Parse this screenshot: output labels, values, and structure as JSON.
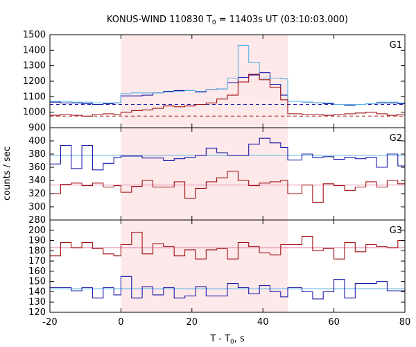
{
  "chart_data": {
    "type": "line",
    "title_prefix": "KONUS-WIND 110830 T",
    "title_sub": "0",
    "title_suffix": " = 11403s UT (03:10:03.000)",
    "xlabel_prefix": "T - T",
    "xlabel_sub": "0",
    "xlabel_suffix": ", s",
    "ylabel": "counts / sec",
    "xlim": [
      -20,
      80
    ],
    "xticks": [
      -20,
      0,
      20,
      40,
      60,
      80
    ],
    "highlight": {
      "x0": 0,
      "x1": 47,
      "color": "#fde8ea"
    },
    "panels": [
      {
        "label": "G1",
        "ylim": [
          900,
          1500
        ],
        "yticks": [
          900,
          1000,
          1100,
          1200,
          1300,
          1400,
          1500
        ],
        "x_edges": [
          -20,
          -17,
          -14,
          -11,
          -8,
          -5,
          -2,
          0,
          3,
          6,
          9,
          12,
          15,
          18,
          21,
          24,
          27,
          30,
          33,
          36,
          39,
          42,
          45,
          47,
          51,
          54,
          57,
          60,
          63,
          66,
          69,
          72,
          75,
          78,
          80
        ],
        "series": [
          {
            "name": "blue",
            "color": "#1a1aa8",
            "values": [
              1065,
              1060,
              1060,
              1055,
              1050,
              1055,
              1060,
              1105,
              1105,
              1110,
              1125,
              1135,
              1140,
              1140,
              1130,
              1145,
              1150,
              1190,
              1225,
              1240,
              1255,
              1180,
              1110,
              1070,
              1065,
              1060,
              1055,
              1050,
              1045,
              1050,
              1055,
              1060,
              1060,
              1055
            ]
          },
          {
            "name": "lightblue",
            "color": "#5ab4e8",
            "values": [
              1070,
              1070,
              1065,
              1065,
              1060,
              1060,
              1060,
              1120,
              1125,
              1125,
              1125,
              1130,
              1135,
              1140,
              1135,
              1145,
              1150,
              1220,
              1430,
              1320,
              1220,
              1220,
              1215,
              1070,
              1065,
              1060,
              1060,
              1050,
              1050,
              1050,
              1055,
              1065,
              1065,
              1060
            ]
          },
          {
            "name": "darkred",
            "color": "#a01010",
            "values": [
              980,
              985,
              980,
              975,
              985,
              990,
              985,
              1000,
              1010,
              1015,
              1025,
              1040,
              1035,
              1040,
              1050,
              1060,
              1085,
              1110,
              1195,
              1245,
              1210,
              1160,
              1080,
              990,
              985,
              985,
              980,
              985,
              990,
              995,
              1000,
              990,
              980,
              985
            ]
          }
        ],
        "refs": [
          {
            "y": 1050,
            "color": "#1a1aa8",
            "dashed": true
          },
          {
            "y": 975,
            "color": "#a01010",
            "dashed": true
          }
        ]
      },
      {
        "label": "G2",
        "ylim": [
          280,
          420
        ],
        "yticks": [
          280,
          300,
          320,
          340,
          360,
          380,
          400
        ],
        "x_edges": [
          -20,
          -17,
          -14,
          -11,
          -8,
          -5,
          -2,
          0,
          3,
          6,
          9,
          12,
          15,
          18,
          21,
          24,
          27,
          30,
          33,
          36,
          39,
          42,
          45,
          47,
          51,
          54,
          57,
          60,
          63,
          66,
          69,
          72,
          75,
          78,
          80
        ],
        "series": [
          {
            "name": "blue",
            "color": "#1a1aa8",
            "values": [
              365,
              393,
              358,
              393,
              356,
              366,
              375,
              377,
              377,
              374,
              374,
              370,
              373,
              375,
              378,
              389,
              382,
              378,
              378,
              395,
              404,
              397,
              390,
              371,
              380,
              375,
              376,
              372,
              375,
              373,
              375,
              360,
              380,
              362
            ]
          },
          {
            "name": "darkred",
            "color": "#a01010",
            "values": [
              320,
              334,
              336,
              332,
              336,
              330,
              332,
              322,
              331,
              340,
              330,
              330,
              338,
              313,
              328,
              338,
              344,
              354,
              340,
              332,
              336,
              338,
              340,
              320,
              333,
              307,
              335,
              332,
              325,
              330,
              338,
              330,
              340,
              335
            ]
          }
        ],
        "refs": [
          {
            "y": 378,
            "color": "#5ab4e8",
            "dashed": false
          },
          {
            "y": 333,
            "color": "#e58cb0",
            "dashed": false
          }
        ]
      },
      {
        "label": "G3",
        "ylim": [
          120,
          210
        ],
        "yticks": [
          120,
          130,
          140,
          150,
          160,
          170,
          180,
          190,
          200
        ],
        "x_edges": [
          -20,
          -17,
          -14,
          -11,
          -8,
          -5,
          -2,
          0,
          3,
          6,
          9,
          12,
          15,
          18,
          21,
          24,
          27,
          30,
          33,
          36,
          39,
          42,
          45,
          47,
          51,
          54,
          57,
          60,
          63,
          66,
          69,
          72,
          75,
          78,
          80
        ],
        "series": [
          {
            "name": "darkred",
            "color": "#a01010",
            "values": [
              175,
              188,
              183,
              188,
              182,
              177,
              175,
              186,
              198,
              177,
              187,
              184,
              175,
              181,
              172,
              181,
              182,
              172,
              188,
              184,
              178,
              176,
              186,
              186,
              194,
              180,
              182,
              172,
              188,
              179,
              186,
              184,
              183,
              190
            ]
          },
          {
            "name": "blue",
            "color": "#1a1aa8",
            "values": [
              144,
              144,
              141,
              144,
              134,
              144,
              137,
              155,
              134,
              145,
              137,
              144,
              134,
              136,
              145,
              136,
              136,
              148,
              144,
              138,
              146,
              140,
              135,
              144,
              140,
              133,
              140,
              152,
              134,
              148,
              148,
              150,
              141,
              141
            ]
          }
        ],
        "refs": [
          {
            "y": 143,
            "color": "#5ab4e8",
            "dashed": false
          },
          {
            "y": 183,
            "color": "#e58cb0",
            "dashed": false
          }
        ]
      }
    ]
  }
}
